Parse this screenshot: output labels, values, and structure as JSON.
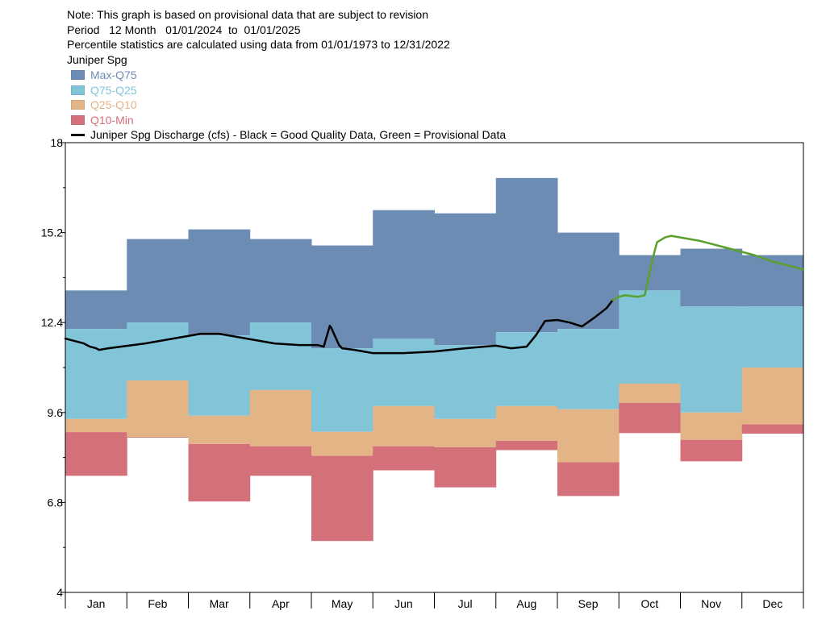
{
  "header": {
    "note": "Note: This graph is based on provisional data that are subject to revision",
    "period": "Period   12 Month   01/01/2024  to  01/01/2025",
    "percentile": "Percentile statistics are calculated using data from 01/01/1973 to 12/31/2022",
    "station": "Juniper Spg"
  },
  "legend": [
    {
      "label": "Max-Q75",
      "color": "#6d8cb4"
    },
    {
      "label": "Q75-Q25",
      "color": "#82c4d8"
    },
    {
      "label": "Q25-Q10",
      "color": "#e3b486"
    },
    {
      "label": "Q10-Min",
      "color": "#d4707a"
    }
  ],
  "legend_line": "Juniper Spg Discharge (cfs) - Black = Good Quality Data, Green = Provisional Data",
  "chart_data": {
    "type": "area",
    "categories": [
      "Jan",
      "Feb",
      "Mar",
      "Apr",
      "May",
      "Jun",
      "Jul",
      "Aug",
      "Sep",
      "Oct",
      "Nov",
      "Dec"
    ],
    "ylim": [
      4,
      18
    ],
    "y_ticks": [
      "18",
      "15.2",
      "12.4",
      "9.6",
      "6.8",
      "4"
    ],
    "bands": {
      "max": [
        13.4,
        15.0,
        15.3,
        15.0,
        14.8,
        15.9,
        15.8,
        16.9,
        15.2,
        14.5,
        14.7,
        14.5
      ],
      "q75": [
        12.2,
        12.4,
        12.0,
        12.4,
        11.6,
        11.9,
        11.7,
        12.1,
        12.2,
        13.4,
        12.9,
        12.9
      ],
      "q25": [
        9.4,
        10.6,
        9.5,
        10.3,
        9.0,
        9.8,
        9.4,
        9.8,
        9.7,
        10.5,
        9.6,
        11.0
      ],
      "q10": [
        8.99,
        8.82,
        8.62,
        8.55,
        8.25,
        8.55,
        8.52,
        8.72,
        8.05,
        9.9,
        8.75,
        9.23
      ],
      "min": [
        7.63,
        8.84,
        6.83,
        7.63,
        5.6,
        7.8,
        7.27,
        8.43,
        7.0,
        8.96,
        8.08,
        8.94
      ]
    },
    "series": [
      {
        "name": "Good Quality Data",
        "color": "#000000",
        "x": [
          0,
          0.1,
          0.2,
          0.3,
          0.4,
          0.5,
          0.55,
          0.7,
          0.9,
          1.1,
          1.3,
          1.6,
          1.9,
          2.2,
          2.5,
          2.8,
          3.1,
          3.4,
          3.8,
          4.1,
          4.2,
          4.3,
          4.32,
          4.45,
          4.5,
          4.7,
          5.0,
          5.5,
          6.0,
          6.5,
          7.0,
          7.25,
          7.5,
          7.65,
          7.8,
          8.0,
          8.2,
          8.4,
          8.6,
          8.8,
          8.9
        ],
        "y": [
          11.9,
          11.85,
          11.8,
          11.75,
          11.65,
          11.6,
          11.55,
          11.6,
          11.65,
          11.7,
          11.75,
          11.85,
          11.95,
          12.05,
          12.05,
          11.95,
          11.85,
          11.75,
          11.7,
          11.7,
          11.65,
          12.3,
          12.25,
          11.7,
          11.6,
          11.55,
          11.45,
          11.45,
          11.5,
          11.6,
          11.68,
          11.6,
          11.65,
          12.0,
          12.45,
          12.48,
          12.4,
          12.28,
          12.55,
          12.85,
          13.1
        ]
      },
      {
        "name": "Provisional Data",
        "color": "#5aa02c",
        "x": [
          8.9,
          9.0,
          9.1,
          9.3,
          9.42,
          9.55,
          9.62,
          9.75,
          9.85,
          10.0,
          10.3,
          10.6,
          10.9,
          11.2,
          11.5,
          11.8,
          12.0
        ],
        "y": [
          13.1,
          13.2,
          13.25,
          13.2,
          13.25,
          14.4,
          14.9,
          15.05,
          15.1,
          15.05,
          14.95,
          14.8,
          14.65,
          14.5,
          14.3,
          14.15,
          14.05
        ]
      }
    ]
  }
}
